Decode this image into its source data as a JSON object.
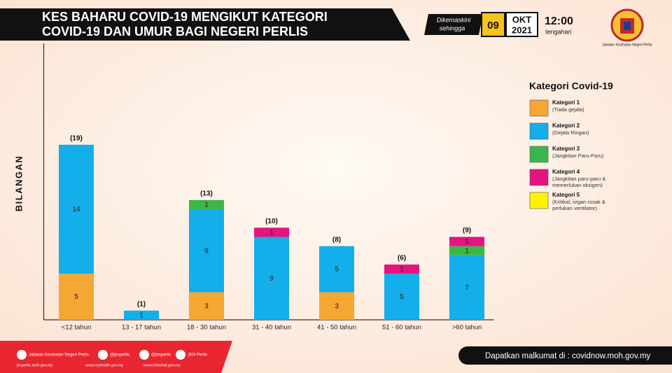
{
  "header": {
    "title_lines": [
      "KES BAHARU COVID-19 MENGIKUT KATEGORI",
      "COVID-19 DAN UMUR BAGI NEGERI PERLIS"
    ],
    "updated_lines": [
      "Dikemaskini",
      "sehingga"
    ],
    "day": "09",
    "month": "OKT",
    "year": "2021",
    "time": "12:00",
    "time_label": "tengahari",
    "agency": "Jabatan Kesihatan Negeri Perlis"
  },
  "chart_data": {
    "type": "bar",
    "stacked": true,
    "y_label": "BILANGAN",
    "legend_title": "Kategori Covid-19",
    "categories": [
      "<12 tahun",
      "13 - 17 tahun",
      "18 - 30 tahun",
      "31 - 40 tahun",
      "41 - 50 tahun",
      "51 - 60 tahun",
      ">60 tahun"
    ],
    "total_labels": [
      "(19)",
      "(1)",
      "(13)",
      "(10)",
      "(8)",
      "(6)",
      "(9)"
    ],
    "series": [
      {
        "name": "Kategori 1",
        "description": [
          "(Tiada gejala)"
        ],
        "color": "#f5a733",
        "values": [
          5,
          null,
          3,
          null,
          3,
          null,
          null
        ]
      },
      {
        "name": "Kategori 2",
        "description": [
          "(Gejala Ringan)"
        ],
        "color": "#14aeea",
        "values": [
          14,
          1,
          9,
          9,
          5,
          5,
          7
        ]
      },
      {
        "name": "Kategori 3",
        "description": [
          "(Jangkitan Paru-Paru)"
        ],
        "color": "#3cb64a",
        "values": [
          null,
          null,
          1,
          null,
          null,
          null,
          1
        ]
      },
      {
        "name": "Kategori 4",
        "description": [
          "(Jangkitan paru-paru &",
          "memerlukan oksigen)"
        ],
        "color": "#e5147f",
        "values": [
          null,
          null,
          null,
          1,
          null,
          1,
          1
        ]
      },
      {
        "name": "Kategori 5",
        "description": [
          "(Kritikal, organ rosak &",
          "perlukan ventilator)"
        ],
        "color": "#fff200",
        "values": [
          null,
          null,
          null,
          null,
          null,
          null,
          null
        ]
      }
    ],
    "ylim": [
      0,
      30
    ]
  },
  "footer": {
    "social": [
      "Jabatan Kesihatan Negeri Perlis",
      "@jknperlis",
      "@jknperlis",
      "JKN Perlis"
    ],
    "links": [
      "jknperlis.moh.gov.my",
      "www.myhealth.gov.my",
      "www.infosihat.gov.my"
    ],
    "info": "Dapatkan malkumat di : covidnow.moh.gov.my"
  }
}
